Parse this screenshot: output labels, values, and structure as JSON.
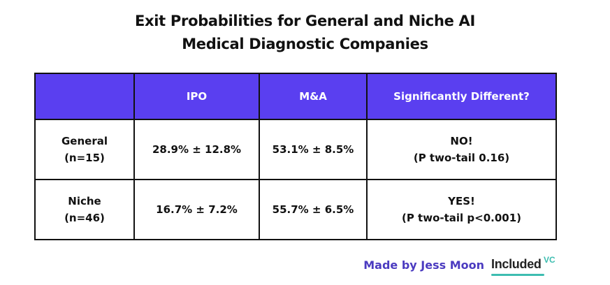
{
  "title": {
    "line1": "Exit Probabilities for General and Niche AI",
    "line2": "Medical Diagnostic Companies"
  },
  "chart_data": {
    "type": "table",
    "columns": [
      "",
      "IPO",
      "M&A",
      "Significantly Different?"
    ],
    "rows": [
      {
        "label_line1": "General",
        "label_line2": "(n=15)",
        "ipo": "28.9% ± 12.8%",
        "ma": "53.1% ± 8.5%",
        "sig_line1": "NO!",
        "sig_line2": "(P two-tail 0.16)"
      },
      {
        "label_line1": "Niche",
        "label_line2": "(n=46)",
        "ipo": "16.7% ± 7.2%",
        "ma": "55.7% ± 6.5%",
        "sig_line1": "YES!",
        "sig_line2": "(P two-tail p<0.001)"
      }
    ]
  },
  "footer": {
    "made_by": "Made by Jess Moon",
    "logo_text": "Included",
    "logo_sup": "VC"
  },
  "colors": {
    "header_bg": "#5a3ff0",
    "header_text": "#ffffff",
    "made_by_text": "#4b3bc0",
    "logo_accent": "#3dbdb0"
  }
}
